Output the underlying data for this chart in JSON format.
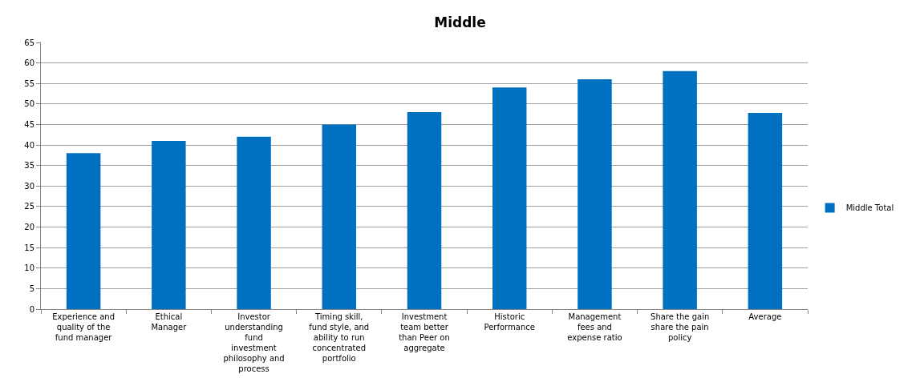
{
  "chart_data": {
    "type": "bar",
    "title": "Middle",
    "categories": [
      "Experience and quality of the fund manager",
      "Ethical Manager",
      "Investor understanding fund investment philosophy and process",
      "Timing skill, fund style, and ability to run concentrated portfolio",
      "Investment team better than Peer on aggregate",
      "Historic Performance",
      "Management fees and expense ratio",
      "Share the gain share the pain policy",
      "Average"
    ],
    "series": [
      {
        "name": "Middle Total",
        "color": "#0070c0",
        "values": [
          38,
          41,
          42,
          45,
          48,
          54,
          56,
          58,
          47.8
        ]
      }
    ],
    "ylim": [
      0,
      65
    ],
    "yticks": [
      0,
      5,
      10,
      15,
      20,
      25,
      30,
      35,
      40,
      45,
      50,
      55,
      60,
      65
    ],
    "grid": "y",
    "legend": "right"
  }
}
